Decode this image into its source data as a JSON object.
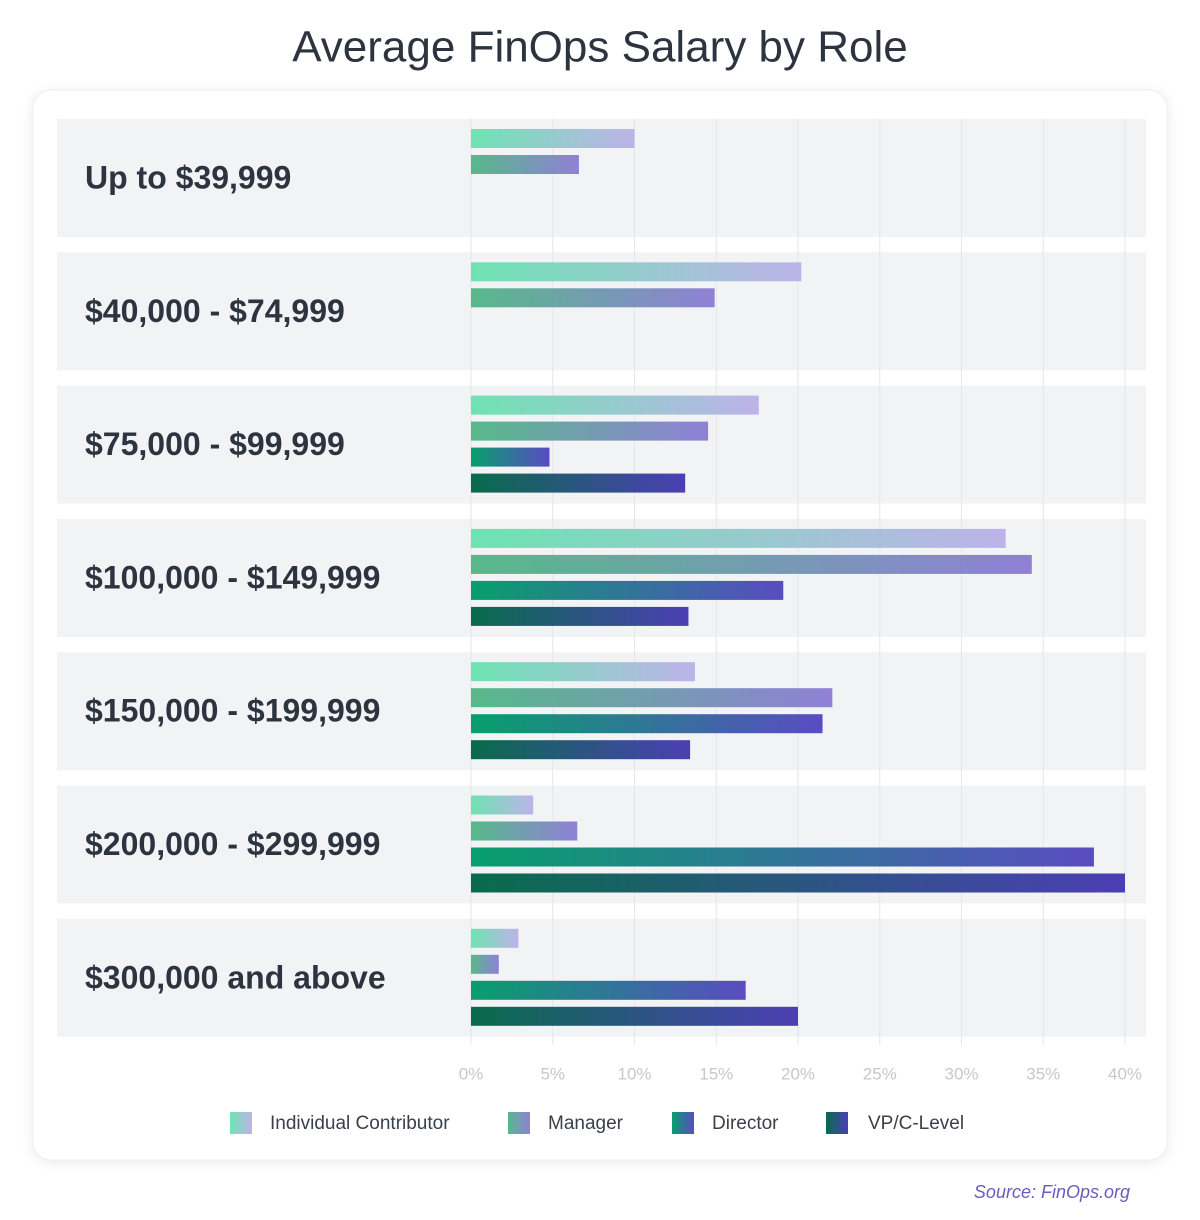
{
  "chart_data": {
    "type": "hbar",
    "title": "Average FinOps Salary by Role",
    "categories": [
      "Up to $39,999",
      "$40,000 - $74,999",
      "$75,000 - $99,999",
      "$100,000 - $149,999",
      "$150,000 - $199,999",
      "$200,000 - $299,999",
      "$300,000 and above"
    ],
    "series": [
      {
        "name": "Individual Contributor",
        "color": "#6ee3b2",
        "color_end": "#bdb3e8",
        "values": [
          10.0,
          20.2,
          17.6,
          32.7,
          13.7,
          3.8,
          2.9
        ]
      },
      {
        "name": "Manager",
        "color": "#57b98a",
        "color_end": "#9080d6",
        "values": [
          6.6,
          14.9,
          14.5,
          34.3,
          22.1,
          6.5,
          1.7
        ]
      },
      {
        "name": "Director",
        "color": "#079f6c",
        "color_end": "#5a4cc2",
        "values": [
          null,
          null,
          4.8,
          19.1,
          21.5,
          38.1,
          16.8
        ]
      },
      {
        "name": "VP/C-Level",
        "color": "#096b4c",
        "color_end": "#4c3fb4",
        "values": [
          null,
          null,
          13.1,
          13.3,
          13.4,
          40.0,
          20.0
        ]
      }
    ],
    "xlim": [
      0,
      40
    ],
    "xticks": [
      {
        "value": 0,
        "label": "0%"
      },
      {
        "value": 5,
        "label": "5%"
      },
      {
        "value": 10,
        "label": "10%"
      },
      {
        "value": 15,
        "label": "15%"
      },
      {
        "value": 20,
        "label": "20%"
      },
      {
        "value": 25,
        "label": "25%"
      },
      {
        "value": 30,
        "label": "30%"
      },
      {
        "value": 35,
        "label": "35%"
      },
      {
        "value": 40,
        "label": "40%"
      }
    ],
    "grid": true,
    "legend": "bottom",
    "source": "Source: FinOps.org"
  }
}
